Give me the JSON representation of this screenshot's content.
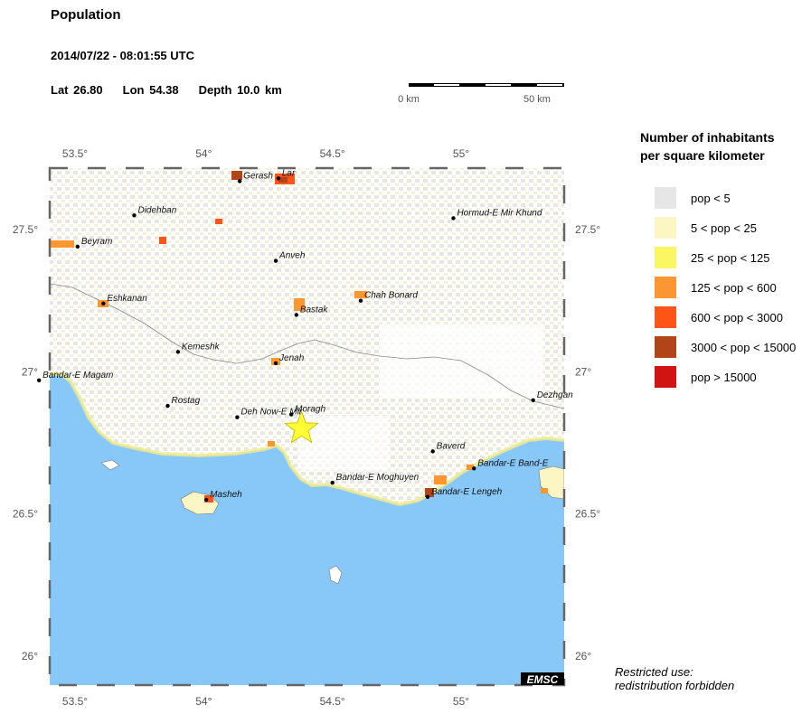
{
  "header": {
    "title": "Population",
    "datetime": "2014/07/22 - 08:01:55 UTC",
    "lat": "Lat 26.80",
    "lon": "Lon  54.38",
    "depth": "Depth  10.0 km"
  },
  "scale": {
    "left_label": "0 km",
    "right_label": "50 km"
  },
  "axes": {
    "top_ticks": [
      "53.5°",
      "54°",
      "54.5°",
      "55°"
    ],
    "bottom_ticks": [
      "53.5°",
      "54°",
      "54.5°",
      "55°"
    ],
    "left_ticks": [
      "27.5°",
      "27°",
      "26.5°",
      "26°"
    ],
    "right_ticks": [
      "27.5°",
      "27°",
      "26.5°",
      "26°"
    ]
  },
  "cities": [
    {
      "name": "Gerash",
      "lon": 54.14,
      "lat": 27.67
    },
    {
      "name": "Lar",
      "lon": 54.29,
      "lat": 27.68
    },
    {
      "name": "Didehban",
      "lon": 53.73,
      "lat": 27.55
    },
    {
      "name": "Hormud-E Mir Khund",
      "lon": 54.97,
      "lat": 27.54
    },
    {
      "name": "Beyram",
      "lon": 53.51,
      "lat": 27.44
    },
    {
      "name": "Anveh",
      "lon": 54.28,
      "lat": 27.39
    },
    {
      "name": "Eshkanan",
      "lon": 53.61,
      "lat": 27.24
    },
    {
      "name": "Chah Bonard",
      "lon": 54.61,
      "lat": 27.25
    },
    {
      "name": "Bastak",
      "lon": 54.36,
      "lat": 27.2
    },
    {
      "name": "Kemeshk",
      "lon": 53.9,
      "lat": 27.07
    },
    {
      "name": "Jenah",
      "lon": 54.28,
      "lat": 27.03
    },
    {
      "name": "Bandar-E Magam",
      "lon": 53.36,
      "lat": 26.97
    },
    {
      "name": "Rostag",
      "lon": 53.86,
      "lat": 26.88
    },
    {
      "name": "Dezhgan",
      "lon": 55.28,
      "lat": 26.9
    },
    {
      "name": "Deh Now-E Mir",
      "lon": 54.13,
      "lat": 26.84
    },
    {
      "name": "Moragh",
      "lon": 54.34,
      "lat": 26.85
    },
    {
      "name": "Baverd",
      "lon": 54.89,
      "lat": 26.72
    },
    {
      "name": "Bandar-E Band-E",
      "lon": 55.05,
      "lat": 26.66
    },
    {
      "name": "Bandar-E Moghuyen",
      "lon": 54.5,
      "lat": 26.61
    },
    {
      "name": "Bandar-E Lengeh",
      "lon": 54.87,
      "lat": 26.56
    },
    {
      "name": "Masheh",
      "lon": 54.01,
      "lat": 26.55
    }
  ],
  "epicenter": {
    "lon": 54.38,
    "lat": 26.8
  },
  "legend": {
    "title_line1": "Number of inhabitants",
    "title_line2": "per square kilometer",
    "items": [
      {
        "label": "pop < 5",
        "color": "#e6e6e6"
      },
      {
        "label": "5 < pop < 25",
        "color": "#fbf6c4"
      },
      {
        "label": "25 < pop < 125",
        "color": "#fbf664"
      },
      {
        "label": "125 < pop < 600",
        "color": "#fc9630"
      },
      {
        "label": "600 < pop < 3000",
        "color": "#fc5519"
      },
      {
        "label": "3000 < pop < 15000",
        "color": "#b14519"
      },
      {
        "label": "pop > 15000",
        "color": "#d21313"
      }
    ]
  },
  "watermark": "EMSC",
  "restricted_line1": "Restricted use:",
  "restricted_line2": "redistribution forbidden",
  "colors": {
    "sea": "#87c8f8",
    "land": "#ffffff",
    "epicenter": "#ffff33"
  }
}
